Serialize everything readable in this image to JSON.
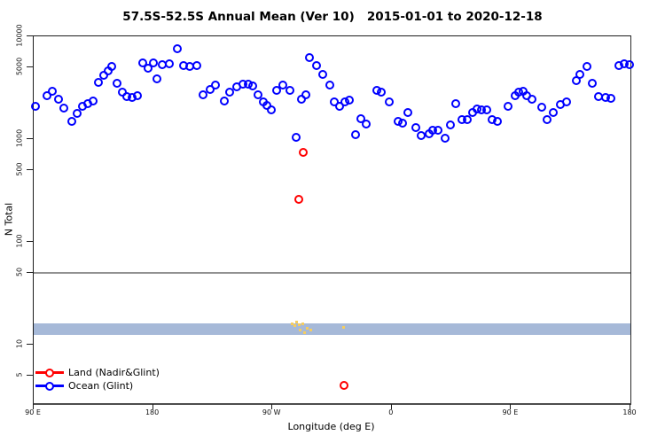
{
  "chart_data": {
    "type": "scatter",
    "title": "57.5S-52.5S Annual Mean (Ver 10)   2015-01-01 to 2020-12-18",
    "xlabel": "Longitude (deg E)",
    "ylabel": "N Total",
    "x_axis": {
      "min": 90,
      "max": 540,
      "ticks": [
        {
          "value": 90,
          "label": "90 E"
        },
        {
          "value": 180,
          "label": "180"
        },
        {
          "value": 270,
          "label": "90 W"
        },
        {
          "value": 360,
          "label": "0"
        },
        {
          "value": 450,
          "label": "90 E"
        },
        {
          "value": 540,
          "label": "180"
        }
      ]
    },
    "y_axis": {
      "scale": "log10",
      "min": 2.7,
      "max": 10000,
      "ticks": [
        10000,
        5000,
        1000,
        500,
        100,
        50,
        10,
        5
      ]
    },
    "reference_line": {
      "y": 50,
      "color": "#919191"
    },
    "band": {
      "y_from": 12.4,
      "y_to": 16.1,
      "color": "#a6b9d8"
    },
    "legend": {
      "position": "bottom-left"
    },
    "series": [
      {
        "name": "Land (Nadir&Glint)",
        "color": "#ff0000",
        "marker": "open-circle",
        "points": [
          [
            290,
            258
          ],
          [
            293,
            740
          ],
          [
            324,
            4
          ]
        ]
      },
      {
        "name": "Ocean (Glint)",
        "color": "#0000ff",
        "marker": "open-circle",
        "points": [
          [
            91,
            2100
          ],
          [
            100,
            2630
          ],
          [
            104,
            2940
          ],
          [
            109,
            2460
          ],
          [
            113,
            2010
          ],
          [
            119,
            1500
          ],
          [
            123,
            1790
          ],
          [
            127,
            2090
          ],
          [
            131,
            2230
          ],
          [
            135,
            2360
          ],
          [
            139,
            3580
          ],
          [
            143,
            4180
          ],
          [
            146,
            4610
          ],
          [
            149,
            5060
          ],
          [
            153,
            3470
          ],
          [
            157,
            2880
          ],
          [
            160,
            2580
          ],
          [
            164,
            2530
          ],
          [
            168,
            2620
          ],
          [
            172,
            5500
          ],
          [
            176,
            4900
          ],
          [
            180,
            5550
          ],
          [
            183,
            3870
          ],
          [
            187,
            5330
          ],
          [
            192,
            5430
          ],
          [
            198,
            7530
          ],
          [
            203,
            5160
          ],
          [
            208,
            5100
          ],
          [
            213,
            5160
          ],
          [
            218,
            2700
          ],
          [
            223,
            3040
          ],
          [
            227,
            3360
          ],
          [
            234,
            2330
          ],
          [
            238,
            2880
          ],
          [
            243,
            3250
          ],
          [
            248,
            3400
          ],
          [
            252,
            3400
          ],
          [
            255,
            3270
          ],
          [
            259,
            2680
          ],
          [
            263,
            2300
          ],
          [
            266,
            2110
          ],
          [
            269,
            1930
          ],
          [
            273,
            2970
          ],
          [
            278,
            3350
          ],
          [
            283,
            3000
          ],
          [
            288,
            1050
          ],
          [
            292,
            2460
          ],
          [
            295,
            2700
          ],
          [
            298,
            6200
          ],
          [
            303,
            5160
          ],
          [
            308,
            4240
          ],
          [
            313,
            3360
          ],
          [
            317,
            2290
          ],
          [
            321,
            2100
          ],
          [
            325,
            2300
          ],
          [
            328,
            2410
          ],
          [
            333,
            1100
          ],
          [
            337,
            1570
          ],
          [
            341,
            1390
          ],
          [
            349,
            2980
          ],
          [
            352,
            2840
          ],
          [
            358,
            2300
          ],
          [
            365,
            1490
          ],
          [
            368,
            1420
          ],
          [
            372,
            1820
          ],
          [
            378,
            1290
          ],
          [
            382,
            1080
          ],
          [
            388,
            1130
          ],
          [
            391,
            1220
          ],
          [
            395,
            1220
          ],
          [
            400,
            1010
          ],
          [
            404,
            1370
          ],
          [
            408,
            2210
          ],
          [
            413,
            1540
          ],
          [
            417,
            1540
          ],
          [
            421,
            1820
          ],
          [
            424,
            1980
          ],
          [
            428,
            1910
          ],
          [
            432,
            1910
          ],
          [
            436,
            1550
          ],
          [
            440,
            1500
          ],
          [
            448,
            2070
          ],
          [
            453,
            2660
          ],
          [
            456,
            2880
          ],
          [
            459,
            2940
          ],
          [
            462,
            2660
          ],
          [
            466,
            2460
          ],
          [
            473,
            2040
          ],
          [
            477,
            1550
          ],
          [
            482,
            1820
          ],
          [
            487,
            2180
          ],
          [
            492,
            2300
          ],
          [
            499,
            3700
          ],
          [
            502,
            4300
          ],
          [
            507,
            5060
          ],
          [
            511,
            3520
          ],
          [
            516,
            2580
          ],
          [
            521,
            2550
          ],
          [
            525,
            2510
          ],
          [
            531,
            5160
          ],
          [
            535,
            5430
          ],
          [
            539,
            5330
          ]
        ]
      },
      {
        "name": "unlabeled-yellow-marks",
        "color": "#f6cd5f",
        "marker": "speck",
        "points": [
          [
            285,
            16
          ],
          [
            287,
            15.2
          ],
          [
            288,
            16.5
          ],
          [
            290,
            15.6
          ],
          [
            291,
            14
          ],
          [
            293,
            15.8
          ],
          [
            294,
            13.2
          ],
          [
            296,
            14.5
          ],
          [
            299,
            13.8
          ],
          [
            324,
            14.6
          ]
        ]
      }
    ]
  }
}
